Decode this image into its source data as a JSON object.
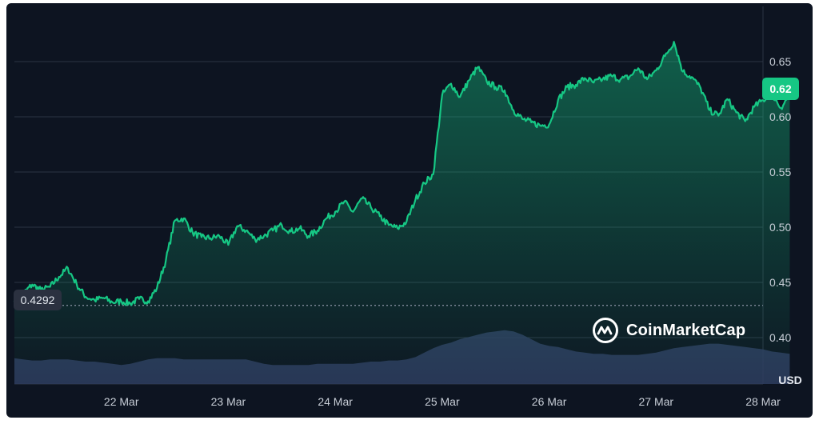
{
  "brand": {
    "name": "CoinMarketCap",
    "logo_icon": "coinmarketcap-logo-icon"
  },
  "colors": {
    "background": "#0d1421",
    "price_line": "#16c784",
    "price_fill_top": "#16c784",
    "volume_fill": "#2f3a5e",
    "grid": "#2b3444",
    "reference_line": "#8a92a3",
    "current_badge": "#16c784",
    "reference_badge": "#2b3140"
  },
  "chart_data": {
    "type": "area",
    "currency_unit": "USD",
    "x_ticks": [
      "22 Mar",
      "23 Mar",
      "24 Mar",
      "25 Mar",
      "26 Mar",
      "27 Mar",
      "28 Mar"
    ],
    "x_range": [
      "21 Mar",
      "28 Mar"
    ],
    "y_ticks": [
      0.4,
      0.45,
      0.5,
      0.55,
      0.6,
      0.65
    ],
    "y_tick_labels": [
      "0.40",
      "0.45",
      "0.50",
      "0.55",
      "0.60",
      "0.65"
    ],
    "ylim": [
      0.358,
      0.7
    ],
    "grid": true,
    "reference_price": 0.4292,
    "reference_label": "0.4292",
    "current_price": 0.62,
    "current_label": "0.62",
    "price_series": {
      "x": [
        "21 Mar 00:00",
        "21 Mar 02:00",
        "21 Mar 04:00",
        "21 Mar 06:00",
        "21 Mar 08:00",
        "21 Mar 10:00",
        "21 Mar 12:00",
        "21 Mar 14:00",
        "21 Mar 16:00",
        "21 Mar 18:00",
        "21 Mar 20:00",
        "21 Mar 22:00",
        "22 Mar 00:00",
        "22 Mar 02:00",
        "22 Mar 04:00",
        "22 Mar 06:00",
        "22 Mar 08:00",
        "22 Mar 10:00",
        "22 Mar 12:00",
        "22 Mar 14:00",
        "22 Mar 16:00",
        "22 Mar 18:00",
        "22 Mar 20:00",
        "22 Mar 22:00",
        "23 Mar 00:00",
        "23 Mar 02:00",
        "23 Mar 04:00",
        "23 Mar 06:00",
        "23 Mar 08:00",
        "23 Mar 10:00",
        "23 Mar 12:00",
        "23 Mar 14:00",
        "23 Mar 16:00",
        "23 Mar 18:00",
        "23 Mar 20:00",
        "23 Mar 22:00",
        "24 Mar 00:00",
        "24 Mar 02:00",
        "24 Mar 04:00",
        "24 Mar 06:00",
        "24 Mar 08:00",
        "24 Mar 10:00",
        "24 Mar 12:00",
        "24 Mar 14:00",
        "24 Mar 16:00",
        "24 Mar 18:00",
        "24 Mar 20:00",
        "24 Mar 22:00",
        "25 Mar 00:00",
        "25 Mar 02:00",
        "25 Mar 04:00",
        "25 Mar 06:00",
        "25 Mar 08:00",
        "25 Mar 10:00",
        "25 Mar 12:00",
        "25 Mar 14:00",
        "25 Mar 16:00",
        "25 Mar 18:00",
        "25 Mar 20:00",
        "25 Mar 22:00",
        "26 Mar 00:00",
        "26 Mar 02:00",
        "26 Mar 04:00",
        "26 Mar 06:00",
        "26 Mar 08:00",
        "26 Mar 10:00",
        "26 Mar 12:00",
        "26 Mar 14:00",
        "26 Mar 16:00",
        "26 Mar 18:00",
        "26 Mar 20:00",
        "26 Mar 22:00",
        "27 Mar 00:00",
        "27 Mar 02:00",
        "27 Mar 04:00",
        "27 Mar 06:00",
        "27 Mar 08:00",
        "27 Mar 10:00",
        "27 Mar 12:00",
        "27 Mar 14:00",
        "27 Mar 16:00",
        "27 Mar 18:00",
        "27 Mar 20:00",
        "27 Mar 22:00",
        "28 Mar 00:00",
        "28 Mar 02:00",
        "28 Mar 04:00",
        "28 Mar 06:00"
      ],
      "values": [
        0.433,
        0.44,
        0.448,
        0.443,
        0.446,
        0.455,
        0.463,
        0.448,
        0.437,
        0.434,
        0.436,
        0.432,
        0.433,
        0.431,
        0.435,
        0.433,
        0.445,
        0.47,
        0.506,
        0.508,
        0.495,
        0.491,
        0.49,
        0.492,
        0.484,
        0.501,
        0.497,
        0.489,
        0.492,
        0.497,
        0.502,
        0.496,
        0.499,
        0.492,
        0.497,
        0.508,
        0.514,
        0.523,
        0.514,
        0.526,
        0.518,
        0.51,
        0.502,
        0.499,
        0.505,
        0.525,
        0.54,
        0.548,
        0.62,
        0.63,
        0.618,
        0.633,
        0.645,
        0.632,
        0.627,
        0.624,
        0.606,
        0.598,
        0.595,
        0.592,
        0.593,
        0.615,
        0.627,
        0.629,
        0.635,
        0.631,
        0.634,
        0.637,
        0.634,
        0.636,
        0.644,
        0.634,
        0.642,
        0.655,
        0.668,
        0.641,
        0.636,
        0.626,
        0.606,
        0.601,
        0.616,
        0.604,
        0.596,
        0.609,
        0.615,
        0.621,
        0.608,
        0.62
      ]
    },
    "volume_series": {
      "description_level": "relative",
      "values": [
        0.23,
        0.22,
        0.21,
        0.21,
        0.22,
        0.22,
        0.22,
        0.21,
        0.2,
        0.2,
        0.19,
        0.18,
        0.17,
        0.18,
        0.2,
        0.22,
        0.23,
        0.23,
        0.23,
        0.22,
        0.22,
        0.22,
        0.22,
        0.22,
        0.22,
        0.22,
        0.22,
        0.2,
        0.18,
        0.17,
        0.17,
        0.17,
        0.17,
        0.17,
        0.18,
        0.18,
        0.18,
        0.18,
        0.18,
        0.19,
        0.2,
        0.2,
        0.21,
        0.21,
        0.22,
        0.24,
        0.28,
        0.32,
        0.35,
        0.37,
        0.4,
        0.42,
        0.44,
        0.46,
        0.47,
        0.48,
        0.47,
        0.44,
        0.4,
        0.36,
        0.34,
        0.33,
        0.31,
        0.29,
        0.28,
        0.27,
        0.27,
        0.26,
        0.26,
        0.26,
        0.26,
        0.27,
        0.28,
        0.3,
        0.32,
        0.33,
        0.34,
        0.35,
        0.36,
        0.36,
        0.35,
        0.34,
        0.33,
        0.32,
        0.31,
        0.29,
        0.28,
        0.27
      ]
    }
  }
}
